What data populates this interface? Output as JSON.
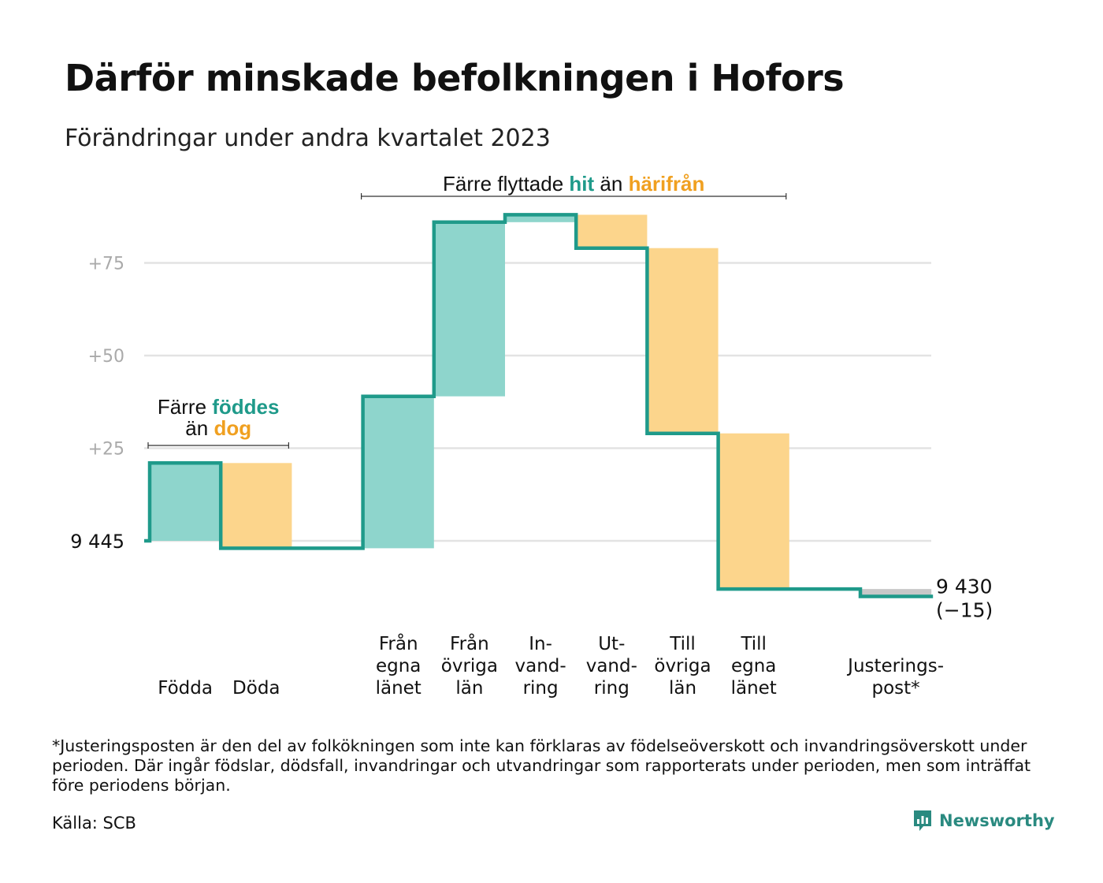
{
  "title": "Därför minskade befolkningen i Hofors",
  "subtitle": "Förändringar under andra kvartalet 2023",
  "footnote": "*Justeringsposten är den del av folkökningen som inte kan förklaras av födelseöverskott och invandringsöverskott under perioden. Där ingår födslar, dödsfall, invandringar och utvandringar som rapporterats under perioden, men som inträffat före periodens början.",
  "source": "Källa: SCB",
  "brand": {
    "name": "Newsworthy",
    "icon": "newsworthy-logo-icon"
  },
  "colors": {
    "increase": "#8ed5cc",
    "decrease": "#fcd58c",
    "adjustment": "#c8c8c8",
    "line": "#1f9a8a",
    "teal_text": "#1f9a8a",
    "orange_text": "#f0a020",
    "grid": "#e3e3e3",
    "tick": "#aaaaaa"
  },
  "chart_data": {
    "type": "waterfall",
    "start_value": 9445,
    "start_label": "9  445",
    "end_value": 9430,
    "end_label": "9 430",
    "end_change_label": "(−15)",
    "y_ticks": [
      {
        "value": 25,
        "label": "+25"
      },
      {
        "value": 50,
        "label": "+50"
      },
      {
        "value": 75,
        "label": "+75"
      }
    ],
    "grid": true,
    "steps": [
      {
        "key": "fodda",
        "label_lines": [
          "Födda"
        ],
        "change": 21,
        "kind": "increase"
      },
      {
        "key": "doda",
        "label_lines": [
          "Döda"
        ],
        "change": -23,
        "kind": "decrease"
      },
      {
        "key": "gap",
        "label_lines": [],
        "change": 0,
        "kind": "gap"
      },
      {
        "key": "fran_egna",
        "label_lines": [
          "Från",
          "egna",
          "länet"
        ],
        "change": 41,
        "kind": "increase"
      },
      {
        "key": "fran_ovriga",
        "label_lines": [
          "Från",
          "övriga",
          "län"
        ],
        "change": 47,
        "kind": "increase"
      },
      {
        "key": "invandring",
        "label_lines": [
          "In-",
          "vand-",
          "ring"
        ],
        "change": 2,
        "kind": "increase"
      },
      {
        "key": "utvandring",
        "label_lines": [
          "Ut-",
          "vand-",
          "ring"
        ],
        "change": -9,
        "kind": "decrease"
      },
      {
        "key": "till_ovriga",
        "label_lines": [
          "Till",
          "övriga",
          "län"
        ],
        "change": -50,
        "kind": "decrease"
      },
      {
        "key": "till_egna",
        "label_lines": [
          "Till",
          "egna",
          "länet"
        ],
        "change": -42,
        "kind": "decrease"
      },
      {
        "key": "gap2",
        "label_lines": [],
        "change": 0,
        "kind": "gap"
      },
      {
        "key": "justering",
        "label_lines": [
          "Justerings-",
          "post*"
        ],
        "change": -2,
        "kind": "adjustment"
      }
    ],
    "annotations": [
      {
        "key": "births",
        "from_step": 0,
        "to_step": 1,
        "line1": [
          {
            "text": "Färre ",
            "color": "dark"
          },
          {
            "text": "föddes",
            "color": "teal"
          }
        ],
        "line2": [
          {
            "text": "än ",
            "color": "dark"
          },
          {
            "text": "dog",
            "color": "orange"
          }
        ]
      },
      {
        "key": "migration",
        "from_step": 3,
        "to_step": 8,
        "line1": [
          {
            "text": "Färre flyttade ",
            "color": "dark"
          },
          {
            "text": "hit",
            "color": "teal"
          },
          {
            "text": " än ",
            "color": "dark"
          },
          {
            "text": "härifrån",
            "color": "orange"
          }
        ]
      }
    ]
  }
}
